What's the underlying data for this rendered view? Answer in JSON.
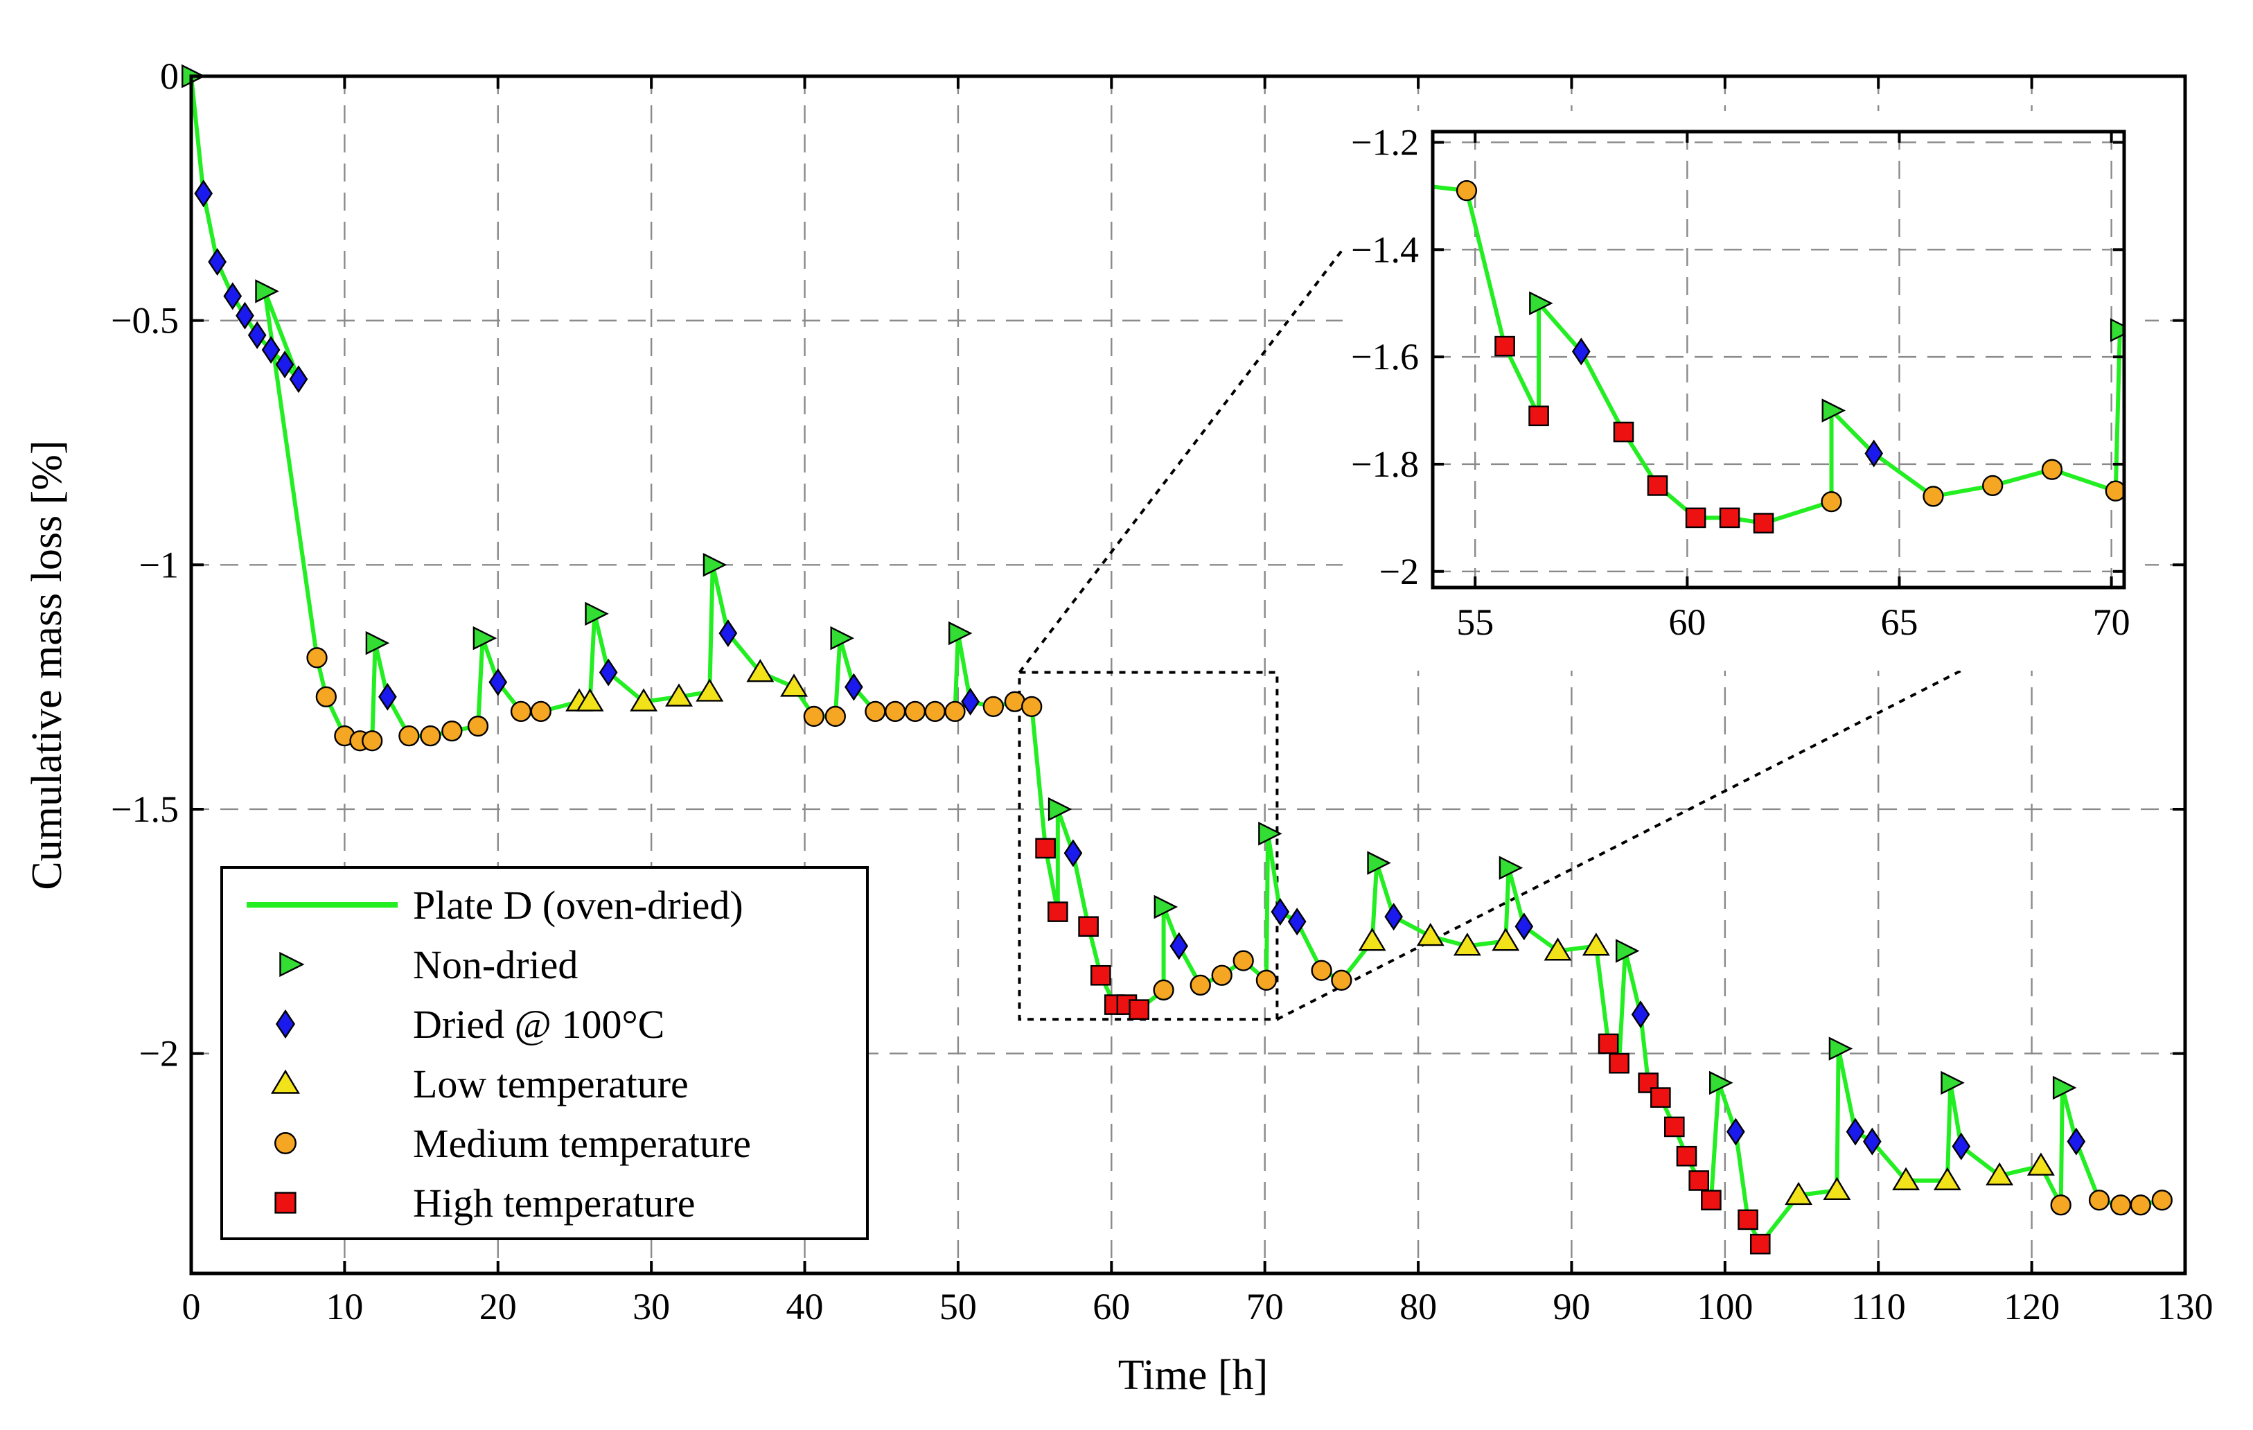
{
  "chart_data": [
    {
      "type": "line",
      "title": "",
      "xlabel": "Time [h]",
      "ylabel": "Cumulative mass loss [%]",
      "xlim": [
        0,
        130
      ],
      "ylim": [
        -2.45,
        0
      ],
      "xticks": [
        0,
        10,
        20,
        30,
        40,
        50,
        60,
        70,
        80,
        90,
        100,
        110,
        120,
        130
      ],
      "yticks": [
        0,
        -0.5,
        -1,
        -1.5,
        -2
      ],
      "ytick_labels": [
        "0",
        "−0.5",
        "−1",
        "−1.5",
        "−2"
      ],
      "grid": true,
      "legend_position": "lower-left",
      "series_name": "Plate D (oven-dried)",
      "line_color": "#22ee22",
      "marker_classes": [
        {
          "key": "N",
          "name": "Non-dried",
          "marker": "triangle-right",
          "color": "#33dd33"
        },
        {
          "key": "D",
          "name": "Dried @ 100°C",
          "marker": "diamond",
          "color": "#1a1aee"
        },
        {
          "key": "L",
          "name": "Low temperature",
          "marker": "triangle-up",
          "color": "#f2e21a"
        },
        {
          "key": "M",
          "name": "Medium temperature",
          "marker": "circle",
          "color": "#f5a623"
        },
        {
          "key": "H",
          "name": "High temperature",
          "marker": "square",
          "color": "#ee1111"
        }
      ],
      "points": [
        [
          0,
          0,
          "N"
        ],
        [
          0.8,
          -0.24,
          "D"
        ],
        [
          1.7,
          -0.38,
          "D"
        ],
        [
          2.7,
          -0.45,
          "D"
        ],
        [
          3.5,
          -0.49,
          "D"
        ],
        [
          4.3,
          -0.53,
          "D"
        ],
        [
          5.2,
          -0.56,
          "D"
        ],
        [
          6.1,
          -0.59,
          "D"
        ],
        [
          7.0,
          -0.62,
          "D"
        ],
        [
          4.8,
          -0.44,
          "N"
        ],
        [
          8.2,
          -1.19,
          "M"
        ],
        [
          8.8,
          -1.27,
          "M"
        ],
        [
          10.0,
          -1.35,
          "M"
        ],
        [
          11.0,
          -1.36,
          "M"
        ],
        [
          11.8,
          -1.36,
          "M"
        ],
        [
          12.0,
          -1.16,
          "N"
        ],
        [
          12.8,
          -1.27,
          "D"
        ],
        [
          14.2,
          -1.35,
          "M"
        ],
        [
          15.6,
          -1.35,
          "M"
        ],
        [
          17.0,
          -1.34,
          "M"
        ],
        [
          18.7,
          -1.33,
          "M"
        ],
        [
          19.0,
          -1.15,
          "N"
        ],
        [
          20.0,
          -1.24,
          "D"
        ],
        [
          21.5,
          -1.3,
          "M"
        ],
        [
          22.8,
          -1.3,
          "M"
        ],
        [
          25.3,
          -1.28,
          "L"
        ],
        [
          26.0,
          -1.28,
          "L"
        ],
        [
          26.3,
          -1.1,
          "N"
        ],
        [
          27.2,
          -1.22,
          "D"
        ],
        [
          29.5,
          -1.28,
          "L"
        ],
        [
          31.8,
          -1.27,
          "L"
        ],
        [
          33.8,
          -1.26,
          "L"
        ],
        [
          34.0,
          -1.0,
          "N"
        ],
        [
          35.0,
          -1.14,
          "D"
        ],
        [
          37.1,
          -1.22,
          "L"
        ],
        [
          39.3,
          -1.25,
          "L"
        ],
        [
          40.6,
          -1.31,
          "M"
        ],
        [
          42.0,
          -1.31,
          "M"
        ],
        [
          42.3,
          -1.15,
          "N"
        ],
        [
          43.2,
          -1.25,
          "D"
        ],
        [
          44.6,
          -1.3,
          "M"
        ],
        [
          45.9,
          -1.3,
          "M"
        ],
        [
          47.2,
          -1.3,
          "M"
        ],
        [
          48.5,
          -1.3,
          "M"
        ],
        [
          49.8,
          -1.3,
          "M"
        ],
        [
          50.0,
          -1.14,
          "N"
        ],
        [
          50.8,
          -1.28,
          "D"
        ],
        [
          52.3,
          -1.29,
          "M"
        ],
        [
          53.7,
          -1.28,
          "M"
        ],
        [
          54.8,
          -1.29,
          "M"
        ],
        [
          55.7,
          -1.58,
          "H"
        ],
        [
          56.5,
          -1.71,
          "H"
        ],
        [
          56.5,
          -1.5,
          "N"
        ],
        [
          57.5,
          -1.59,
          "D"
        ],
        [
          58.5,
          -1.74,
          "H"
        ],
        [
          59.3,
          -1.84,
          "H"
        ],
        [
          60.2,
          -1.9,
          "H"
        ],
        [
          61.0,
          -1.9,
          "H"
        ],
        [
          61.8,
          -1.91,
          "H"
        ],
        [
          63.4,
          -1.87,
          "M"
        ],
        [
          63.4,
          -1.7,
          "N"
        ],
        [
          64.4,
          -1.78,
          "D"
        ],
        [
          65.8,
          -1.86,
          "M"
        ],
        [
          67.2,
          -1.84,
          "M"
        ],
        [
          68.6,
          -1.81,
          "M"
        ],
        [
          70.1,
          -1.85,
          "M"
        ],
        [
          70.2,
          -1.55,
          "N"
        ],
        [
          71.0,
          -1.71,
          "D"
        ],
        [
          72.1,
          -1.73,
          "D"
        ],
        [
          73.7,
          -1.83,
          "M"
        ],
        [
          75.0,
          -1.85,
          "M"
        ],
        [
          77.0,
          -1.77,
          "L"
        ],
        [
          77.3,
          -1.61,
          "N"
        ],
        [
          78.4,
          -1.72,
          "D"
        ],
        [
          80.8,
          -1.76,
          "L"
        ],
        [
          83.2,
          -1.78,
          "L"
        ],
        [
          85.7,
          -1.77,
          "L"
        ],
        [
          85.9,
          -1.62,
          "N"
        ],
        [
          86.9,
          -1.74,
          "D"
        ],
        [
          89.1,
          -1.79,
          "L"
        ],
        [
          91.6,
          -1.78,
          "L"
        ],
        [
          92.4,
          -1.98,
          "H"
        ],
        [
          93.1,
          -2.02,
          "H"
        ],
        [
          93.5,
          -1.79,
          "N"
        ],
        [
          94.5,
          -1.92,
          "D"
        ],
        [
          95.0,
          -2.06,
          "H"
        ],
        [
          95.8,
          -2.09,
          "H"
        ],
        [
          96.7,
          -2.15,
          "H"
        ],
        [
          97.5,
          -2.21,
          "H"
        ],
        [
          98.3,
          -2.26,
          "H"
        ],
        [
          99.1,
          -2.3,
          "H"
        ],
        [
          99.6,
          -2.06,
          "N"
        ],
        [
          100.7,
          -2.16,
          "D"
        ],
        [
          101.5,
          -2.34,
          "H"
        ],
        [
          102.3,
          -2.39,
          "H"
        ],
        [
          104.8,
          -2.29,
          "L"
        ],
        [
          107.3,
          -2.28,
          "L"
        ],
        [
          107.4,
          -1.99,
          "N"
        ],
        [
          108.5,
          -2.16,
          "D"
        ],
        [
          109.6,
          -2.18,
          "D"
        ],
        [
          111.8,
          -2.26,
          "L"
        ],
        [
          114.5,
          -2.26,
          "L"
        ],
        [
          114.7,
          -2.06,
          "N"
        ],
        [
          115.4,
          -2.19,
          "D"
        ],
        [
          117.9,
          -2.25,
          "L"
        ],
        [
          120.6,
          -2.23,
          "L"
        ],
        [
          121.9,
          -2.31,
          "M"
        ],
        [
          122.0,
          -2.07,
          "N"
        ],
        [
          122.9,
          -2.18,
          "D"
        ],
        [
          124.4,
          -2.3,
          "M"
        ],
        [
          125.8,
          -2.31,
          "M"
        ],
        [
          127.1,
          -2.31,
          "M"
        ],
        [
          128.5,
          -2.3,
          "M"
        ]
      ],
      "zoom_box": {
        "x": [
          54,
          70.8
        ],
        "y": [
          -1.93,
          -1.22
        ]
      }
    },
    {
      "type": "line",
      "role": "inset",
      "xlim": [
        54,
        70.3
      ],
      "ylim": [
        -2.03,
        -1.18
      ],
      "xticks": [
        55,
        60,
        65,
        70
      ],
      "yticks": [
        -1.2,
        -1.4,
        -1.6,
        -1.8,
        -2.0
      ],
      "ytick_labels": [
        "−1.2",
        "−1.4",
        "−1.6",
        "−1.8",
        "−2"
      ],
      "grid": true,
      "source_xrange": [
        54,
        70.3
      ]
    }
  ]
}
